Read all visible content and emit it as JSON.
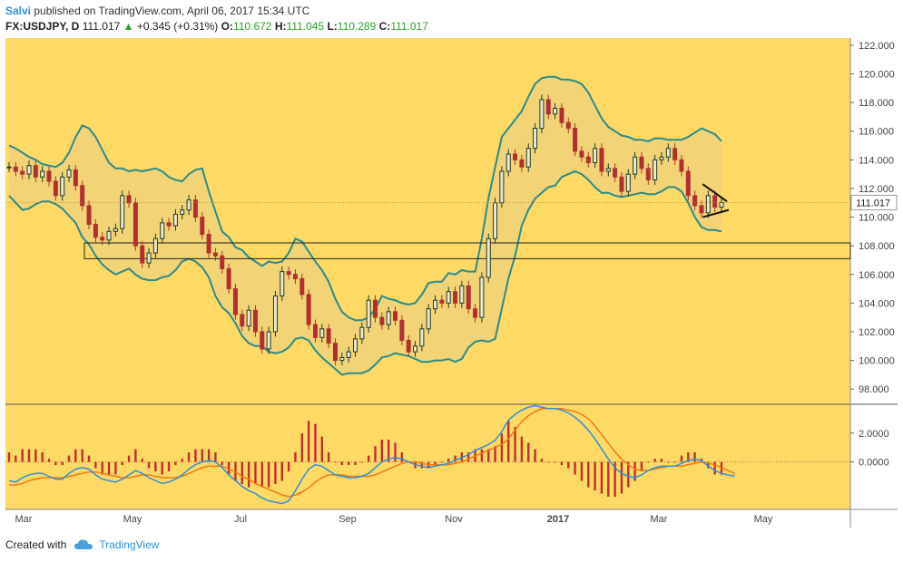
{
  "header": {
    "author": "Salvi",
    "published": "published on TradingView.com, April 06, 2017 15:34 UTC",
    "symbol": "FX:USDJPY, D",
    "last": "111.017",
    "change": "+0.345 (+0.31%)",
    "o_label": "O:",
    "o_value": "110.672",
    "h_label": "H:",
    "h_value": "111.045",
    "l_label": "L:",
    "l_value": "110.289",
    "c_label": "C:",
    "c_value": "111.017"
  },
  "footer": {
    "created_with": "Created with",
    "brand": "TradingView"
  },
  "colors": {
    "background": "#ffd966",
    "band_fill": "#f2d477",
    "band_line": "#2a8a8a",
    "up_candle": "#1a3b2a",
    "down_candle": "#b03030",
    "macd_line": "#2f8fd8",
    "signal_line": "#f07a12",
    "hist": "#c0302a",
    "last_price_tag": "#ffffff"
  },
  "chart_data": [
    {
      "type": "line",
      "title": "FX:USDJPY, D",
      "x_tick_labels": [
        "Mar",
        "May",
        "Jul",
        "Sep",
        "Nov",
        "2017",
        "Mar",
        "May"
      ],
      "y_ticks": [
        "122.000",
        "120.000",
        "118.000",
        "116.000",
        "114.000",
        "112.000",
        "110.000",
        "108.000",
        "106.000",
        "104.000",
        "102.000",
        "100.000",
        "98.000"
      ],
      "ylim": [
        97.0,
        122.5
      ],
      "last_price_label": "111.017",
      "series": [
        {
          "name": "",
          "values": [
            113.5,
            113.2,
            113.0,
            113.6,
            112.8,
            113.2,
            112.5,
            111.5,
            112.8,
            113.3,
            112.2,
            110.8,
            109.5,
            108.6,
            108.4,
            109.0,
            109.2,
            111.5,
            111.0,
            108.0,
            106.8,
            107.5,
            108.5,
            109.6,
            109.4,
            110.2,
            110.5,
            111.2,
            110.0,
            108.8,
            107.5,
            107.3,
            106.4,
            105.0,
            103.2,
            102.4,
            103.5,
            102.0,
            100.8,
            102.0,
            104.5,
            106.2,
            106.0,
            105.7,
            104.6,
            102.5,
            101.6,
            102.2,
            101.2,
            100.0,
            100.2,
            100.6,
            101.5,
            102.3,
            104.2,
            103.0,
            102.5,
            103.4,
            102.8,
            101.4,
            100.6,
            101.0,
            102.2,
            103.6,
            104.2,
            104.0,
            104.8,
            104.0,
            105.2,
            103.6,
            103.0,
            105.8,
            108.5,
            111.0,
            113.2,
            114.4,
            114.0,
            113.5,
            114.8,
            116.2,
            118.2,
            117.2,
            117.6,
            116.6,
            116.2,
            114.6,
            114.2,
            113.8,
            114.8,
            113.2,
            113.4,
            112.8,
            111.8,
            113.0,
            114.2,
            113.4,
            112.6,
            114.0,
            114.2,
            114.8,
            114.0,
            113.2,
            111.5,
            110.8,
            110.3,
            111.5,
            110.7,
            111.017
          ]
        },
        {
          "name": "",
          "values": [
            115.0,
            114.8,
            114.5,
            114.2,
            114.0,
            113.7,
            113.6,
            113.5,
            113.8,
            114.5,
            115.6,
            116.4,
            116.2,
            115.6,
            114.7,
            113.8,
            113.4,
            113.4,
            113.2,
            113.3,
            113.2,
            113.3,
            113.4,
            113.2,
            112.8,
            112.6,
            112.5,
            113.0,
            113.3,
            113.4,
            111.8,
            110.4,
            109.0,
            108.6,
            107.9,
            107.7,
            107.2,
            106.9,
            106.6,
            106.9,
            106.8,
            106.9,
            107.5,
            108.5,
            108.3,
            107.6,
            106.9,
            106.3,
            105.5,
            104.3,
            103.4,
            103.0,
            102.8,
            102.8,
            103.0,
            103.6,
            104.5,
            104.3,
            104.2,
            104.0,
            103.9,
            104.0,
            104.6,
            105.4,
            105.5,
            105.5,
            106.1,
            106.0,
            106.3,
            106.2,
            106.2,
            108.5,
            111.3,
            113.5,
            115.6,
            116.2,
            116.8,
            117.4,
            118.4,
            119.3,
            119.7,
            119.8,
            119.8,
            119.6,
            119.6,
            119.5,
            119.3,
            118.7,
            117.8,
            116.9,
            116.3,
            116.0,
            115.7,
            115.6,
            115.4,
            115.4,
            115.3,
            115.5,
            115.5,
            115.4,
            115.4,
            115.4,
            115.6,
            115.9,
            116.2,
            116.0,
            115.8,
            115.3
          ]
        },
        {
          "name": "",
          "values": [
            111.5,
            111.0,
            110.5,
            110.6,
            110.9,
            111.1,
            111.1,
            110.9,
            110.6,
            110.1,
            109.6,
            108.6,
            108.1,
            107.3,
            106.7,
            106.3,
            106.0,
            106.2,
            106.4,
            106.0,
            105.7,
            105.6,
            105.6,
            105.8,
            105.9,
            106.3,
            106.9,
            107.1,
            106.9,
            106.5,
            105.8,
            104.5,
            103.7,
            103.3,
            102.6,
            101.7,
            101.2,
            101.0,
            101.0,
            100.6,
            100.5,
            100.6,
            100.9,
            101.5,
            101.6,
            101.4,
            100.7,
            100.2,
            99.8,
            99.4,
            99.0,
            99.1,
            99.1,
            99.1,
            99.3,
            99.7,
            100.2,
            100.3,
            100.5,
            100.4,
            100.3,
            100.1,
            99.9,
            99.9,
            100.0,
            100.0,
            100.1,
            99.9,
            100.1,
            100.9,
            101.3,
            101.4,
            101.3,
            101.5,
            103.6,
            105.7,
            107.3,
            109.4,
            110.5,
            111.3,
            111.7,
            112.1,
            112.2,
            112.8,
            113.0,
            113.2,
            113.0,
            112.6,
            112.1,
            111.7,
            111.7,
            111.5,
            111.4,
            111.5,
            111.6,
            111.7,
            111.6,
            111.6,
            111.8,
            112.1,
            112.1,
            111.8,
            111.0,
            110.0,
            109.3,
            109.1,
            109.1,
            109.0
          ]
        }
      ]
    },
    {
      "type": "line",
      "y_ticks": [
        "2.0000",
        "0.0000"
      ],
      "ylim": [
        -3.3,
        4.0
      ],
      "series": [
        {
          "name": "",
          "values": [
            -1.3,
            -1.4,
            -1.1,
            -0.9,
            -0.8,
            -0.8,
            -1.0,
            -1.2,
            -1.2,
            -0.8,
            -0.5,
            -0.4,
            -0.5,
            -0.9,
            -1.2,
            -1.3,
            -1.4,
            -1.2,
            -0.9,
            -0.6,
            -0.8,
            -1.1,
            -1.3,
            -1.5,
            -1.4,
            -1.2,
            -0.9,
            -0.5,
            -0.2,
            0.0,
            0.1,
            0.0,
            -0.4,
            -0.9,
            -1.3,
            -1.7,
            -2.0,
            -2.2,
            -2.5,
            -2.7,
            -2.8,
            -2.9,
            -2.7,
            -2.0,
            -1.2,
            -0.5,
            -0.2,
            -0.3,
            -0.6,
            -0.9,
            -1.0,
            -1.1,
            -1.1,
            -1.0,
            -0.8,
            -0.4,
            0.0,
            0.2,
            0.3,
            0.2,
            0.0,
            -0.2,
            -0.3,
            -0.4,
            -0.3,
            -0.2,
            -0.1,
            0.1,
            0.3,
            0.5,
            0.8,
            1.0,
            1.2,
            1.5,
            2.1,
            2.9,
            3.3,
            3.6,
            3.8,
            3.9,
            3.8,
            3.7,
            3.7,
            3.6,
            3.4,
            3.1,
            2.7,
            2.2,
            1.6,
            0.9,
            0.2,
            -0.4,
            -0.8,
            -1.0,
            -1.1,
            -0.9,
            -0.6,
            -0.4,
            -0.3,
            -0.3,
            -0.3,
            -0.1,
            0.1,
            0.2,
            0.1,
            -0.3,
            -0.6,
            -0.8,
            -0.9,
            -1.0
          ]
        },
        {
          "name": "",
          "values": [
            -1.6,
            -1.6,
            -1.5,
            -1.3,
            -1.2,
            -1.1,
            -1.1,
            -1.1,
            -1.1,
            -1.0,
            -0.9,
            -0.8,
            -0.7,
            -0.7,
            -0.8,
            -0.9,
            -1.0,
            -1.1,
            -1.1,
            -1.0,
            -0.9,
            -0.9,
            -1.0,
            -1.1,
            -1.1,
            -1.1,
            -1.0,
            -0.8,
            -0.6,
            -0.4,
            -0.3,
            -0.3,
            -0.3,
            -0.5,
            -0.7,
            -1.0,
            -1.2,
            -1.5,
            -1.7,
            -1.9,
            -2.1,
            -2.3,
            -2.4,
            -2.3,
            -2.1,
            -1.8,
            -1.4,
            -1.1,
            -0.9,
            -0.9,
            -0.9,
            -1.0,
            -1.0,
            -1.0,
            -1.0,
            -0.9,
            -0.7,
            -0.5,
            -0.3,
            -0.1,
            0.0,
            0.0,
            -0.1,
            -0.2,
            -0.2,
            -0.2,
            -0.2,
            -0.1,
            0.0,
            0.2,
            0.4,
            0.6,
            0.8,
            1.0,
            1.2,
            1.6,
            2.2,
            2.8,
            3.2,
            3.5,
            3.7,
            3.7,
            3.7,
            3.7,
            3.6,
            3.5,
            3.3,
            3.0,
            2.5,
            1.9,
            1.3,
            0.7,
            0.2,
            -0.2,
            -0.5,
            -0.6,
            -0.6,
            -0.5,
            -0.4,
            -0.3,
            -0.3,
            -0.3,
            -0.2,
            -0.1,
            0.0,
            -0.1,
            -0.2,
            -0.4,
            -0.6,
            -0.8
          ]
        }
      ]
    }
  ]
}
